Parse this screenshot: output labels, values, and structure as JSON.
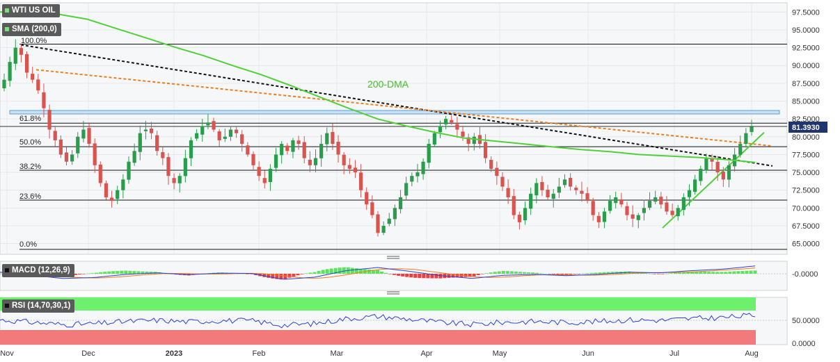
{
  "header": {
    "symbol_label": "WTI US OIL",
    "sma_label": "SMA (200,0)",
    "macd_label": "MACD (12,26,9)",
    "rsi_label": "RSI (14,70,30,1)"
  },
  "annotations": {
    "dma_label": "200-DMA",
    "fib_100": "100.0%",
    "fib_618": "61.8%",
    "fib_50": "50.0%",
    "fib_382": "38.2%",
    "fib_236": "23.6%",
    "fib_0": "0.0%",
    "last_price": "81.3930"
  },
  "colors": {
    "up": "#2a9d4c",
    "down": "#d9534f",
    "sma": "#4fd13a",
    "fib_line": "#111111",
    "resistance_orange": "#f07d1a",
    "trend_black": "#111111",
    "macd_line": "#2b3fd6",
    "signal_line": "#f07d1a",
    "rsi_line": "#2b3fd6",
    "rsi_overbought": "#6df06d",
    "rsi_oversold": "#f27a7a"
  },
  "chart_data": [
    {
      "type": "candlestick",
      "title": "WTI US OIL",
      "x_tick_labels": [
        "Nov",
        "Dec",
        "2023",
        "Feb",
        "Mar",
        "Apr",
        "May",
        "Jun",
        "Jul",
        "Aug"
      ],
      "y_tick_labels": [
        "97.5000",
        "95.0000",
        "92.5000",
        "90.0000",
        "87.5000",
        "85.0000",
        "82.5000",
        "80.0000",
        "77.5000",
        "75.0000",
        "72.5000",
        "70.0000",
        "67.5000",
        "65.0000"
      ],
      "ylim": [
        63.5,
        98.8
      ],
      "close_path": [
        88.0,
        90.5,
        92.5,
        91.5,
        89.0,
        88.0,
        86.5,
        84.0,
        81.0,
        79.5,
        77.5,
        76.5,
        77.5,
        80.0,
        81.0,
        79.0,
        76.0,
        73.5,
        71.5,
        71.0,
        72.5,
        74.0,
        76.5,
        78.0,
        80.5,
        81.0,
        80.5,
        78.0,
        77.0,
        74.5,
        73.5,
        74.5,
        77.0,
        79.5,
        80.5,
        81.5,
        82.0,
        81.0,
        79.5,
        80.0,
        81.0,
        80.5,
        79.0,
        77.5,
        76.0,
        74.5,
        73.5,
        75.5,
        77.5,
        79.0,
        78.0,
        79.5,
        79.0,
        77.0,
        76.0,
        77.0,
        79.0,
        80.5,
        79.0,
        77.5,
        76.0,
        75.5,
        75.0,
        72.5,
        70.5,
        69.0,
        66.5,
        67.5,
        68.5,
        70.0,
        71.5,
        73.5,
        74.5,
        75.0,
        76.5,
        79.0,
        80.5,
        81.5,
        82.5,
        82.0,
        81.0,
        80.0,
        79.0,
        80.0,
        79.0,
        77.0,
        75.5,
        74.5,
        73.0,
        71.5,
        69.0,
        68.0,
        70.0,
        72.0,
        73.5,
        72.5,
        71.5,
        72.0,
        73.0,
        74.0,
        73.0,
        72.5,
        72.0,
        71.0,
        69.0,
        68.0,
        69.5,
        71.0,
        71.5,
        70.5,
        69.0,
        68.5,
        69.0,
        70.0,
        71.0,
        71.5,
        70.5,
        69.5,
        69.0,
        70.0,
        71.5,
        72.5,
        74.0,
        75.5,
        77.0,
        76.5,
        75.0,
        74.0,
        76.0,
        77.5,
        79.0,
        80.5,
        81.39
      ],
      "series": [
        {
          "name": "200-DMA",
          "values": [
            97.5,
            97.4,
            97.2,
            96.5,
            95.2,
            93.9,
            92.6,
            91.4,
            90.0,
            88.7,
            87.2,
            85.6,
            84.0,
            82.5,
            81.5,
            80.6,
            79.8,
            79.4,
            79.0,
            78.6,
            78.2,
            77.9,
            77.5,
            77.3,
            77.1,
            76.8,
            76.4
          ]
        },
        {
          "name": "MACD",
          "values": [
            0.5,
            -0.5,
            -1.5,
            -1.2,
            -0.2,
            0.3,
            -0.3,
            0.2,
            0.1,
            -1.8,
            -1.1,
            1.0,
            2.0,
            0.8,
            -0.6,
            -1.5,
            -0.5,
            -0.2,
            -0.6,
            -0.2,
            0.5,
            0.3,
            1.0,
            1.5,
            2.5
          ]
        }
      ],
      "fibonacci": [
        {
          "label": "100.0%",
          "value": 93.0
        },
        {
          "label": "61.8%",
          "value": 81.9
        },
        {
          "label": "50.0%",
          "value": 78.6
        },
        {
          "label": "38.2%",
          "value": 75.3
        },
        {
          "label": "23.6%",
          "value": 71.1
        },
        {
          "label": "0.0%",
          "value": 64.2
        }
      ],
      "last_value": 81.393,
      "grid": true,
      "legend_position": "top-left"
    },
    {
      "type": "macd",
      "title": "MACD (12,26,9)",
      "y_tick_labels": [
        "-0.0000"
      ]
    },
    {
      "type": "line",
      "title": "RSI (14,70,30,1)",
      "y_tick_labels": [
        "50.0000",
        "0.0000"
      ],
      "ylim": [
        0,
        100
      ],
      "overbought": 70,
      "oversold": 30
    }
  ]
}
